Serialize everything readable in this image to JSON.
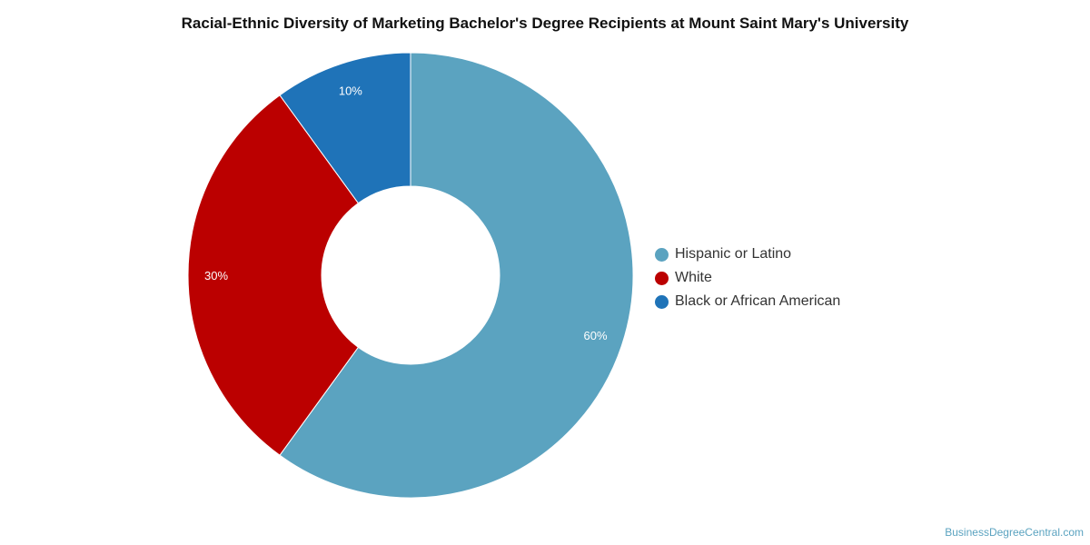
{
  "chart_data": {
    "type": "pie",
    "title": "Racial-Ethnic Diversity of Marketing Bachelor's Degree Recipients at Mount Saint Mary's University",
    "categories": [
      "Hispanic or Latino",
      "White",
      "Black or African American"
    ],
    "values": [
      60,
      30,
      10
    ],
    "data_labels": [
      "60%",
      "30%",
      "10%"
    ],
    "colors": [
      "#5ba3c0",
      "#bb0000",
      "#1f73b8"
    ],
    "donut": true,
    "legend_position": "right"
  },
  "credit": "BusinessDegreeCentral.com"
}
